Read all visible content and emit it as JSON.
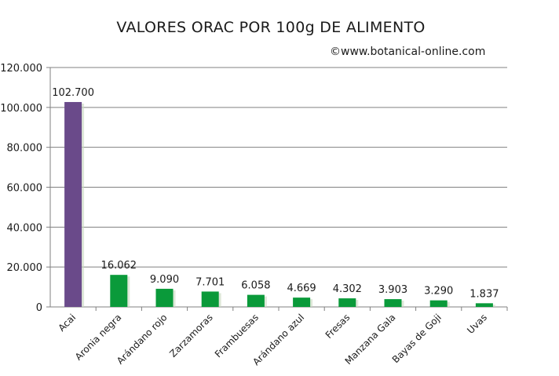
{
  "chart_data": {
    "type": "bar",
    "title": "VALORES ORAC POR 100g DE ALIMENTO",
    "credit": "©www.botanical-online.com",
    "categories": [
      "Acai",
      "Aronia negra",
      "Arándano rojo",
      "Zarzamoras",
      "Frambuesas",
      "Arándano azul",
      "Fresas",
      "Manzana Gala",
      "Bayas de Goji",
      "Uvas"
    ],
    "values": [
      102700,
      16062,
      9090,
      7701,
      6058,
      4669,
      4302,
      3903,
      3290,
      1837
    ],
    "data_labels": [
      "102.700",
      "16.062",
      "9.090",
      "7.701",
      "6.058",
      "4.669",
      "4.302",
      "3.903",
      "3.290",
      "1.837"
    ],
    "ylim": [
      0,
      120000
    ],
    "yticks": [
      0,
      20000,
      40000,
      60000,
      80000,
      100000,
      120000
    ],
    "ytick_labels": [
      "0",
      "20.000",
      "40.000",
      "60.000",
      "80.000",
      "100.000",
      "120.000"
    ],
    "xlabel": "",
    "ylabel": "",
    "grid": true,
    "colors": {
      "highlight": "#6a4a8a",
      "default": "#0a9a3a",
      "grid": "#808080",
      "axis": "#808080"
    }
  }
}
